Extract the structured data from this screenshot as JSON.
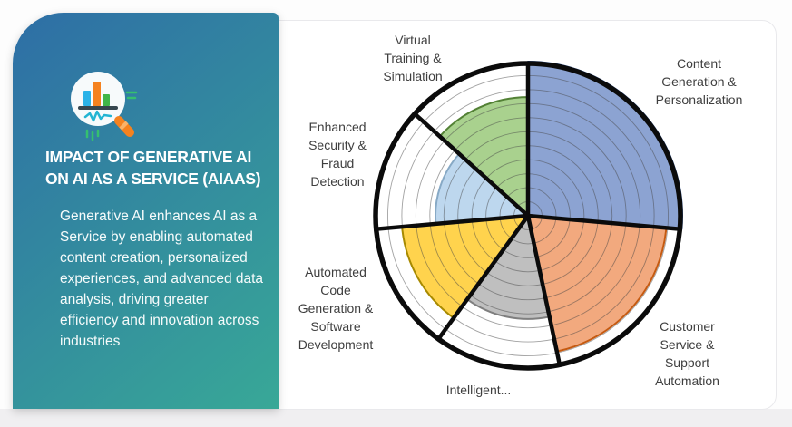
{
  "page": {
    "bottom_strip_color": "#f0eff1",
    "card_background": "#ffffff"
  },
  "panel": {
    "icon": "chart-magnifier",
    "gradient_start": "#2e6ea6",
    "gradient_end": "#38a897",
    "title": "IMPACT OF GENERATIVE AI ON AI AS A SERVICE (AIAAS)",
    "body": "Generative AI enhances AI as a Service by enabling automated content creation, personalized experiences, and advanced data analysis, driving greater efficiency and innovation across industries"
  },
  "chart_data": {
    "type": "polar-rose",
    "title": "",
    "legend": "none",
    "grid_on": true,
    "grid_rings": 10,
    "outer_radius_px": 170,
    "outline_color": "#0b0b0b",
    "value_meaning": "fraction of max radius, estimated from gridlines",
    "segments": [
      {
        "id": "content-generation",
        "label": "Content Generation & Personalization",
        "display": "Content\nGeneration &\nPersonalization",
        "value": 1.0,
        "start_angle": 0,
        "end_angle": 95,
        "fill": "#8ca3d2",
        "stroke": "#2f5597"
      },
      {
        "id": "customer-service",
        "label": "Customer Service & Support Automation",
        "display": "Customer\nService &\nSupport\nAutomation",
        "value": 0.9,
        "start_angle": 95,
        "end_angle": 168,
        "fill": "#f2a97e",
        "stroke": "#c55a11"
      },
      {
        "id": "intelligent",
        "label": "Intelligent...",
        "display": "Intelligent...",
        "value": 0.67,
        "start_angle": 168,
        "end_angle": 216,
        "fill": "#bfbfbf",
        "stroke": "#7f7f7f"
      },
      {
        "id": "automated-code",
        "label": "Automated Code Generation & Software Development",
        "display": "Automated\nCode\nGeneration &\nSoftware\nDevelopment",
        "value": 0.82,
        "start_angle": 216,
        "end_angle": 265,
        "fill": "#ffd34d",
        "stroke": "#a88a00"
      },
      {
        "id": "enhanced-security",
        "label": "Enhanced Security & Fraud Detection",
        "display": "Enhanced\nSecurity &\nFraud\nDetection",
        "value": 0.6,
        "start_angle": 265,
        "end_angle": 312,
        "fill": "#bdd7ee",
        "stroke": "#87a9c5"
      },
      {
        "id": "virtual-training",
        "label": "Virtual Training & Simulation",
        "display": "Virtual\nTraining &\nSimulation",
        "value": 0.77,
        "start_angle": 312,
        "end_angle": 360,
        "fill": "#a9d18e",
        "stroke": "#538135"
      }
    ]
  }
}
